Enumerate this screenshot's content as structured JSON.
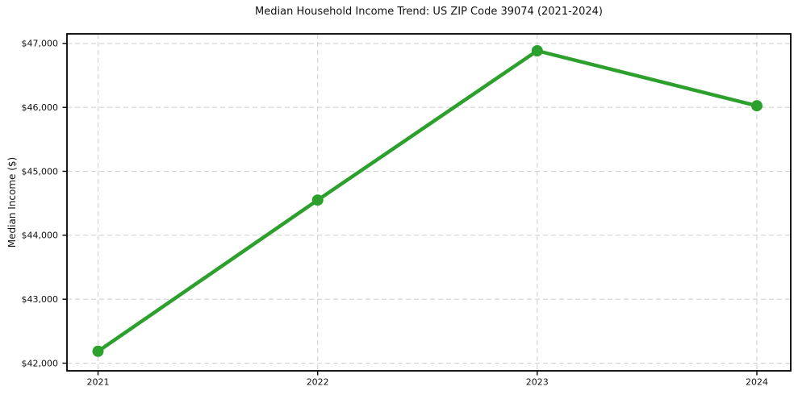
{
  "chart_data": {
    "type": "line",
    "title": "Median Household Income Trend: US ZIP Code 39074 (2021-2024)",
    "xlabel": "",
    "ylabel": "Median Income ($)",
    "x": [
      "2021",
      "2022",
      "2023",
      "2024"
    ],
    "values": [
      42185,
      44550,
      46885,
      46025
    ],
    "yticks": [
      42000,
      43000,
      44000,
      45000,
      46000,
      47000
    ],
    "ytick_labels": [
      "$42,000",
      "$43,000",
      "$44,000",
      "$45,000",
      "$46,000",
      "$47,000"
    ],
    "ylim": [
      41880,
      47150
    ],
    "grid": "dashed, both axes",
    "legend": "none",
    "line_color": "#2ca02c",
    "marker": "circle",
    "marker_color": "#2ca02c",
    "grid_color": "#d2d2d2",
    "spine_color": "#000000",
    "background": "#ffffff"
  }
}
